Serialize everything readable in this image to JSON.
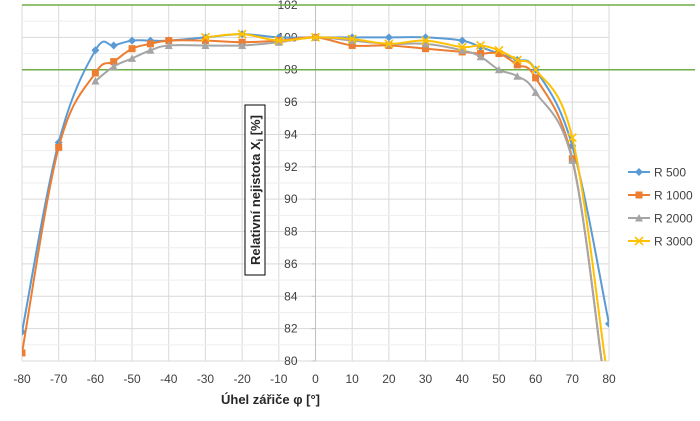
{
  "chart_data": {
    "type": "line",
    "xlabel": "Úhel zářiče φ [°]",
    "ylabel": "Relativní nejistota X",
    "ylabel_sub": "i",
    "ylabel_unit": " [%]",
    "xlim": [
      -80,
      80
    ],
    "ylim": [
      80,
      102
    ],
    "x_ticks": [
      -80,
      -70,
      -60,
      -50,
      -40,
      -30,
      -20,
      -10,
      0,
      10,
      20,
      30,
      40,
      50,
      60,
      70,
      80
    ],
    "y_ticks": [
      80,
      82,
      84,
      86,
      88,
      90,
      92,
      94,
      96,
      98,
      100,
      102
    ],
    "grid": true,
    "legend_position": "right",
    "reference_lines": [
      {
        "y": 102,
        "color": "#70ad47"
      },
      {
        "y": 98,
        "color": "#70ad47"
      }
    ],
    "series": [
      {
        "name": "R 500",
        "color": "#5b9bd5",
        "marker": "diamond",
        "x": [
          -80,
          -70,
          -60,
          -55,
          -50,
          -45,
          -40,
          -30,
          -20,
          -10,
          0,
          10,
          20,
          30,
          40,
          45,
          50,
          55,
          60,
          70,
          80
        ],
        "y": [
          81.8,
          93.5,
          99.2,
          99.5,
          99.8,
          99.8,
          99.8,
          100.0,
          100.2,
          100.0,
          100.0,
          100.0,
          100.0,
          100.0,
          99.8,
          99.4,
          99.0,
          98.6,
          98.0,
          93.3,
          82.3
        ]
      },
      {
        "name": "R 1000",
        "color": "#ed7d31",
        "marker": "square",
        "x": [
          -80,
          -70,
          -60,
          -55,
          -50,
          -45,
          -40,
          -30,
          -20,
          -10,
          0,
          10,
          20,
          30,
          40,
          45,
          50,
          55,
          60,
          70,
          78
        ],
        "y": [
          80.5,
          93.2,
          97.8,
          98.5,
          99.3,
          99.6,
          99.8,
          99.8,
          99.7,
          99.8,
          100.0,
          99.5,
          99.5,
          99.3,
          99.1,
          99.0,
          99.0,
          98.3,
          97.5,
          92.5,
          80.0
        ]
      },
      {
        "name": "R 2000",
        "color": "#a5a5a5",
        "marker": "triangle",
        "x": [
          -60,
          -55,
          -50,
          -45,
          -40,
          -30,
          -20,
          -10,
          0,
          10,
          20,
          30,
          40,
          45,
          50,
          55,
          60,
          70,
          78
        ],
        "y": [
          97.3,
          98.2,
          98.7,
          99.2,
          99.5,
          99.5,
          99.5,
          99.7,
          100.0,
          99.8,
          99.6,
          99.6,
          99.2,
          98.8,
          98.0,
          97.6,
          96.6,
          92.4,
          80.0
        ]
      },
      {
        "name": "R 3000",
        "color": "#ffc000",
        "marker": "x",
        "x": [
          -30,
          -20,
          -10,
          0,
          10,
          20,
          30,
          40,
          45,
          50,
          55,
          60,
          70,
          79
        ],
        "y": [
          100.0,
          100.2,
          99.8,
          100.0,
          99.9,
          99.6,
          99.8,
          99.4,
          99.5,
          99.2,
          98.6,
          98.0,
          93.8,
          80.0
        ]
      }
    ]
  }
}
